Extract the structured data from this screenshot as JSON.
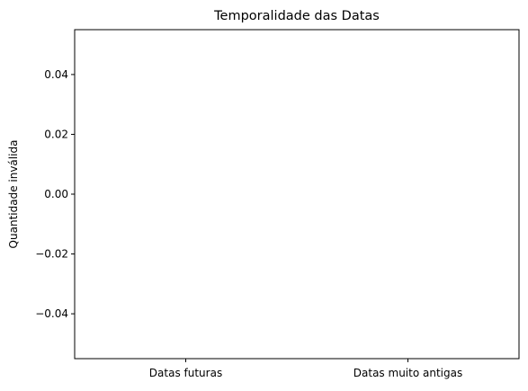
{
  "chart_data": {
    "type": "bar",
    "title": "Temporalidade das Datas",
    "xlabel": "",
    "ylabel": "Quantidade inválida",
    "categories": [
      "Datas futuras",
      "Datas muito antigas"
    ],
    "values": [
      0,
      0
    ],
    "ylim": [
      -0.055,
      0.055
    ],
    "yticks": [
      -0.04,
      -0.02,
      0.0,
      0.02,
      0.04
    ],
    "ytick_labels": [
      "−0.04",
      "−0.02",
      "0.00",
      "0.02",
      "0.04"
    ],
    "grid": false,
    "legend": "none",
    "colors": {
      "bar": "#1f77b4",
      "axes": "#000000",
      "background": "#ffffff"
    }
  }
}
